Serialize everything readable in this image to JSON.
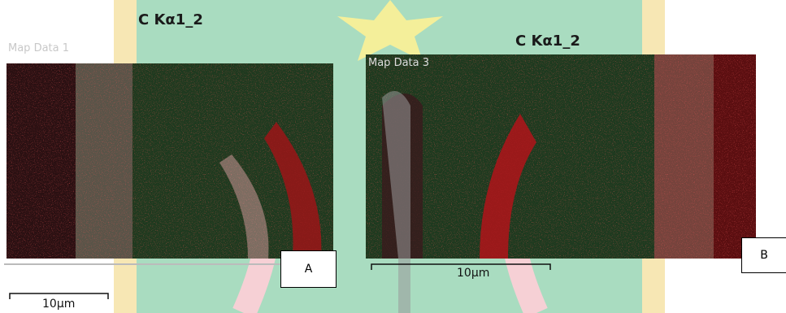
{
  "panels": [
    {
      "title": "C Kα1_2",
      "map_label": "Map Data 1",
      "scale_label": "10µm",
      "panel_label": "A"
    },
    {
      "title": "C Kα1_2",
      "map_label": "Map Data 3",
      "scale_label": "10µm",
      "panel_label": "B"
    }
  ]
}
